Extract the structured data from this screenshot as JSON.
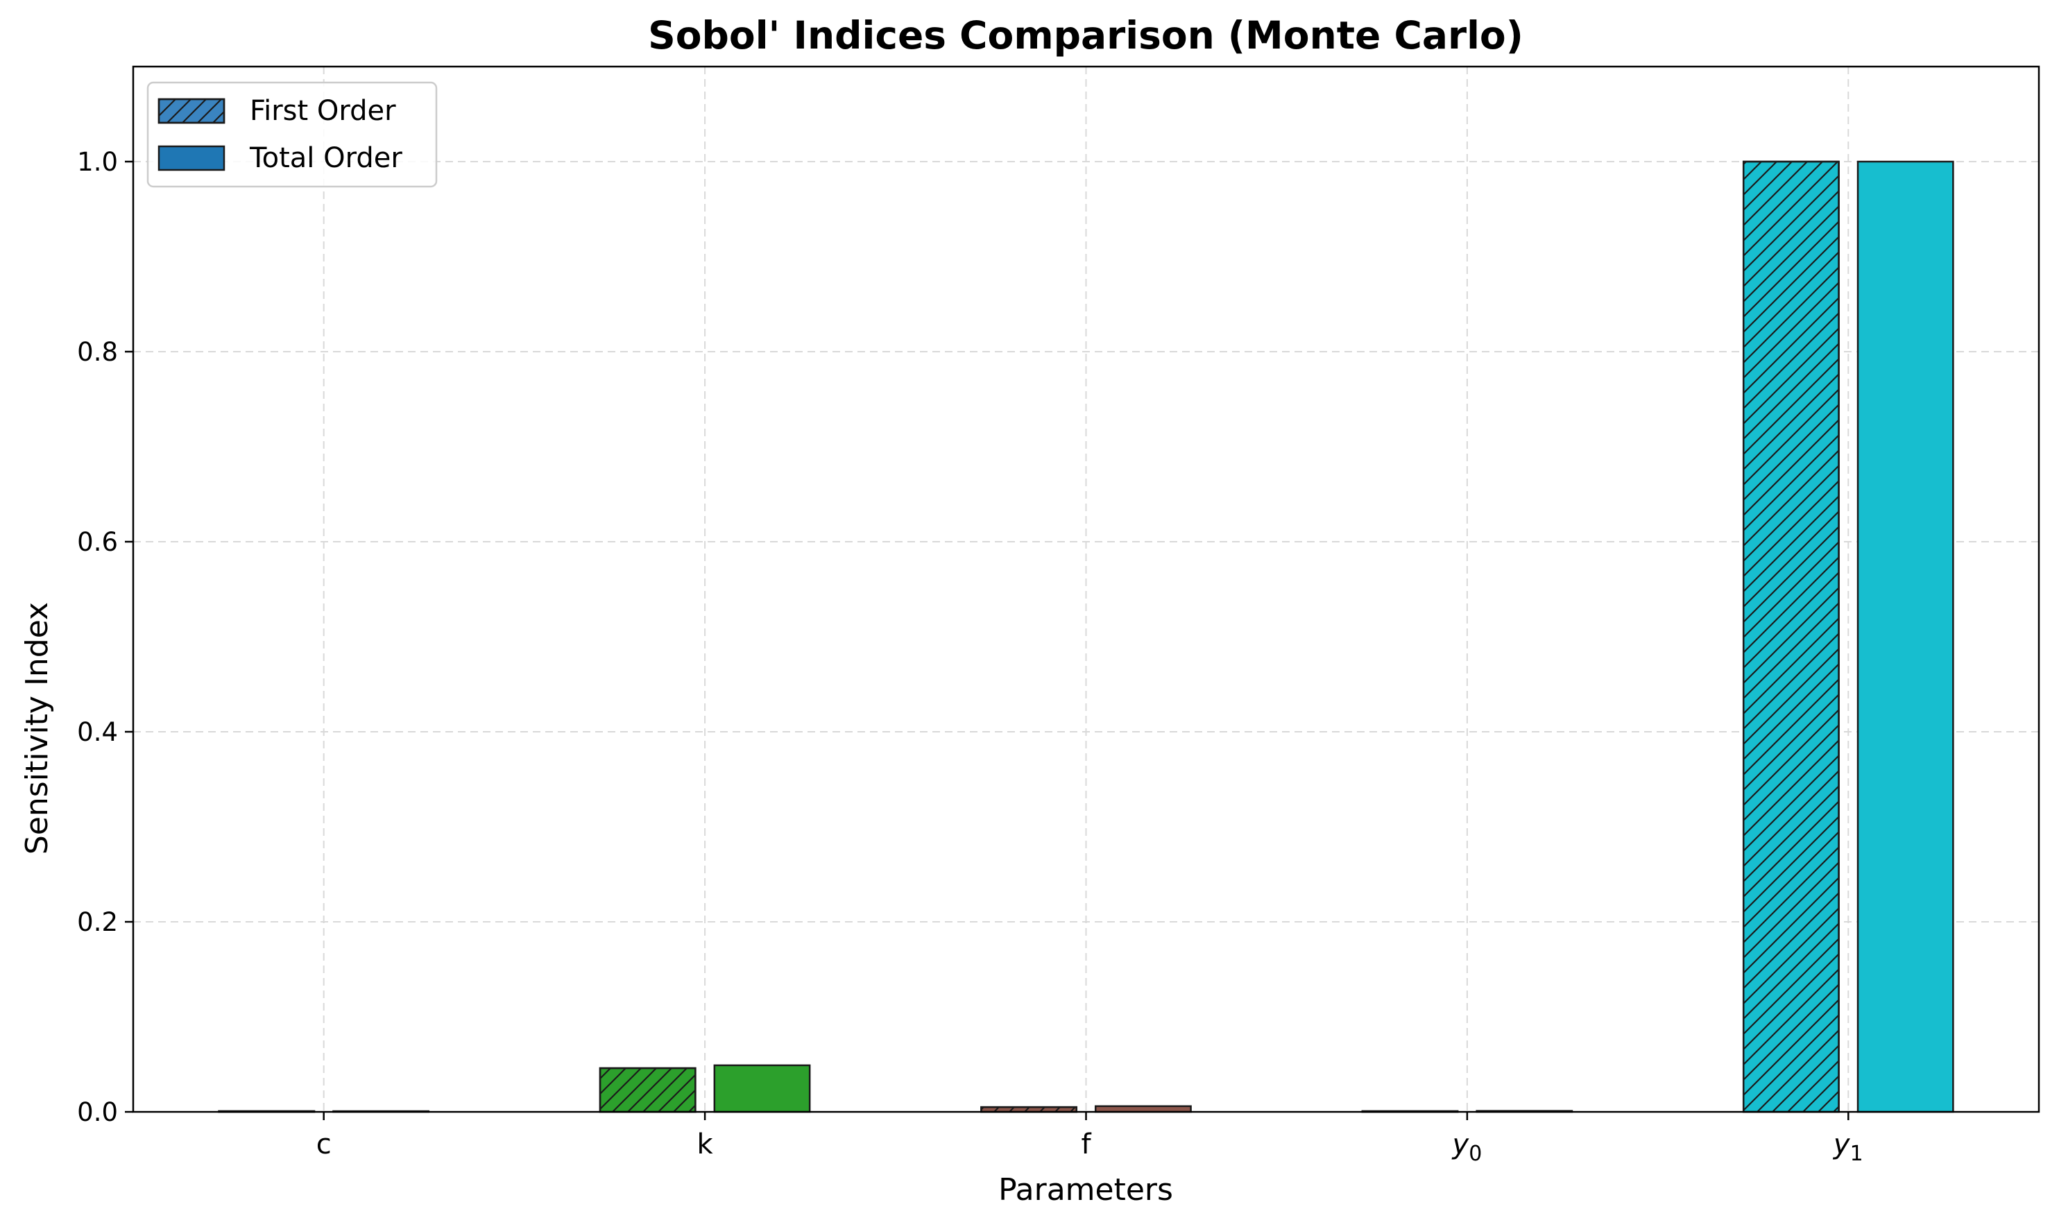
{
  "chart_data": {
    "type": "bar",
    "title": "Sobol' Indices Comparison (Monte Carlo)",
    "xlabel": "Parameters",
    "ylabel": "Sensitivity Index",
    "ylim": [
      0,
      1.1
    ],
    "yticks": [
      0.0,
      0.2,
      0.4,
      0.6,
      0.8,
      1.0
    ],
    "ytick_labels": [
      "0.0",
      "0.2",
      "0.4",
      "0.6",
      "0.8",
      "1.0"
    ],
    "categories": [
      "c",
      "k",
      "f",
      "y0",
      "y1"
    ],
    "category_colors": [
      "#1f77b4",
      "#2ca02c",
      "#8c564b",
      "#7f7f7f",
      "#17becf"
    ],
    "series": [
      {
        "name": "First Order",
        "hatch": "diagonal",
        "values": [
          0.0,
          0.046,
          0.005,
          0.0,
          1.0
        ]
      },
      {
        "name": "Total Order",
        "hatch": "none",
        "values": [
          0.0,
          0.049,
          0.006,
          0.001,
          1.0
        ]
      }
    ],
    "legend_colors": [
      "#3a84c0",
      "#1f77b4"
    ],
    "grid": true,
    "legend_position": "upper-left"
  }
}
